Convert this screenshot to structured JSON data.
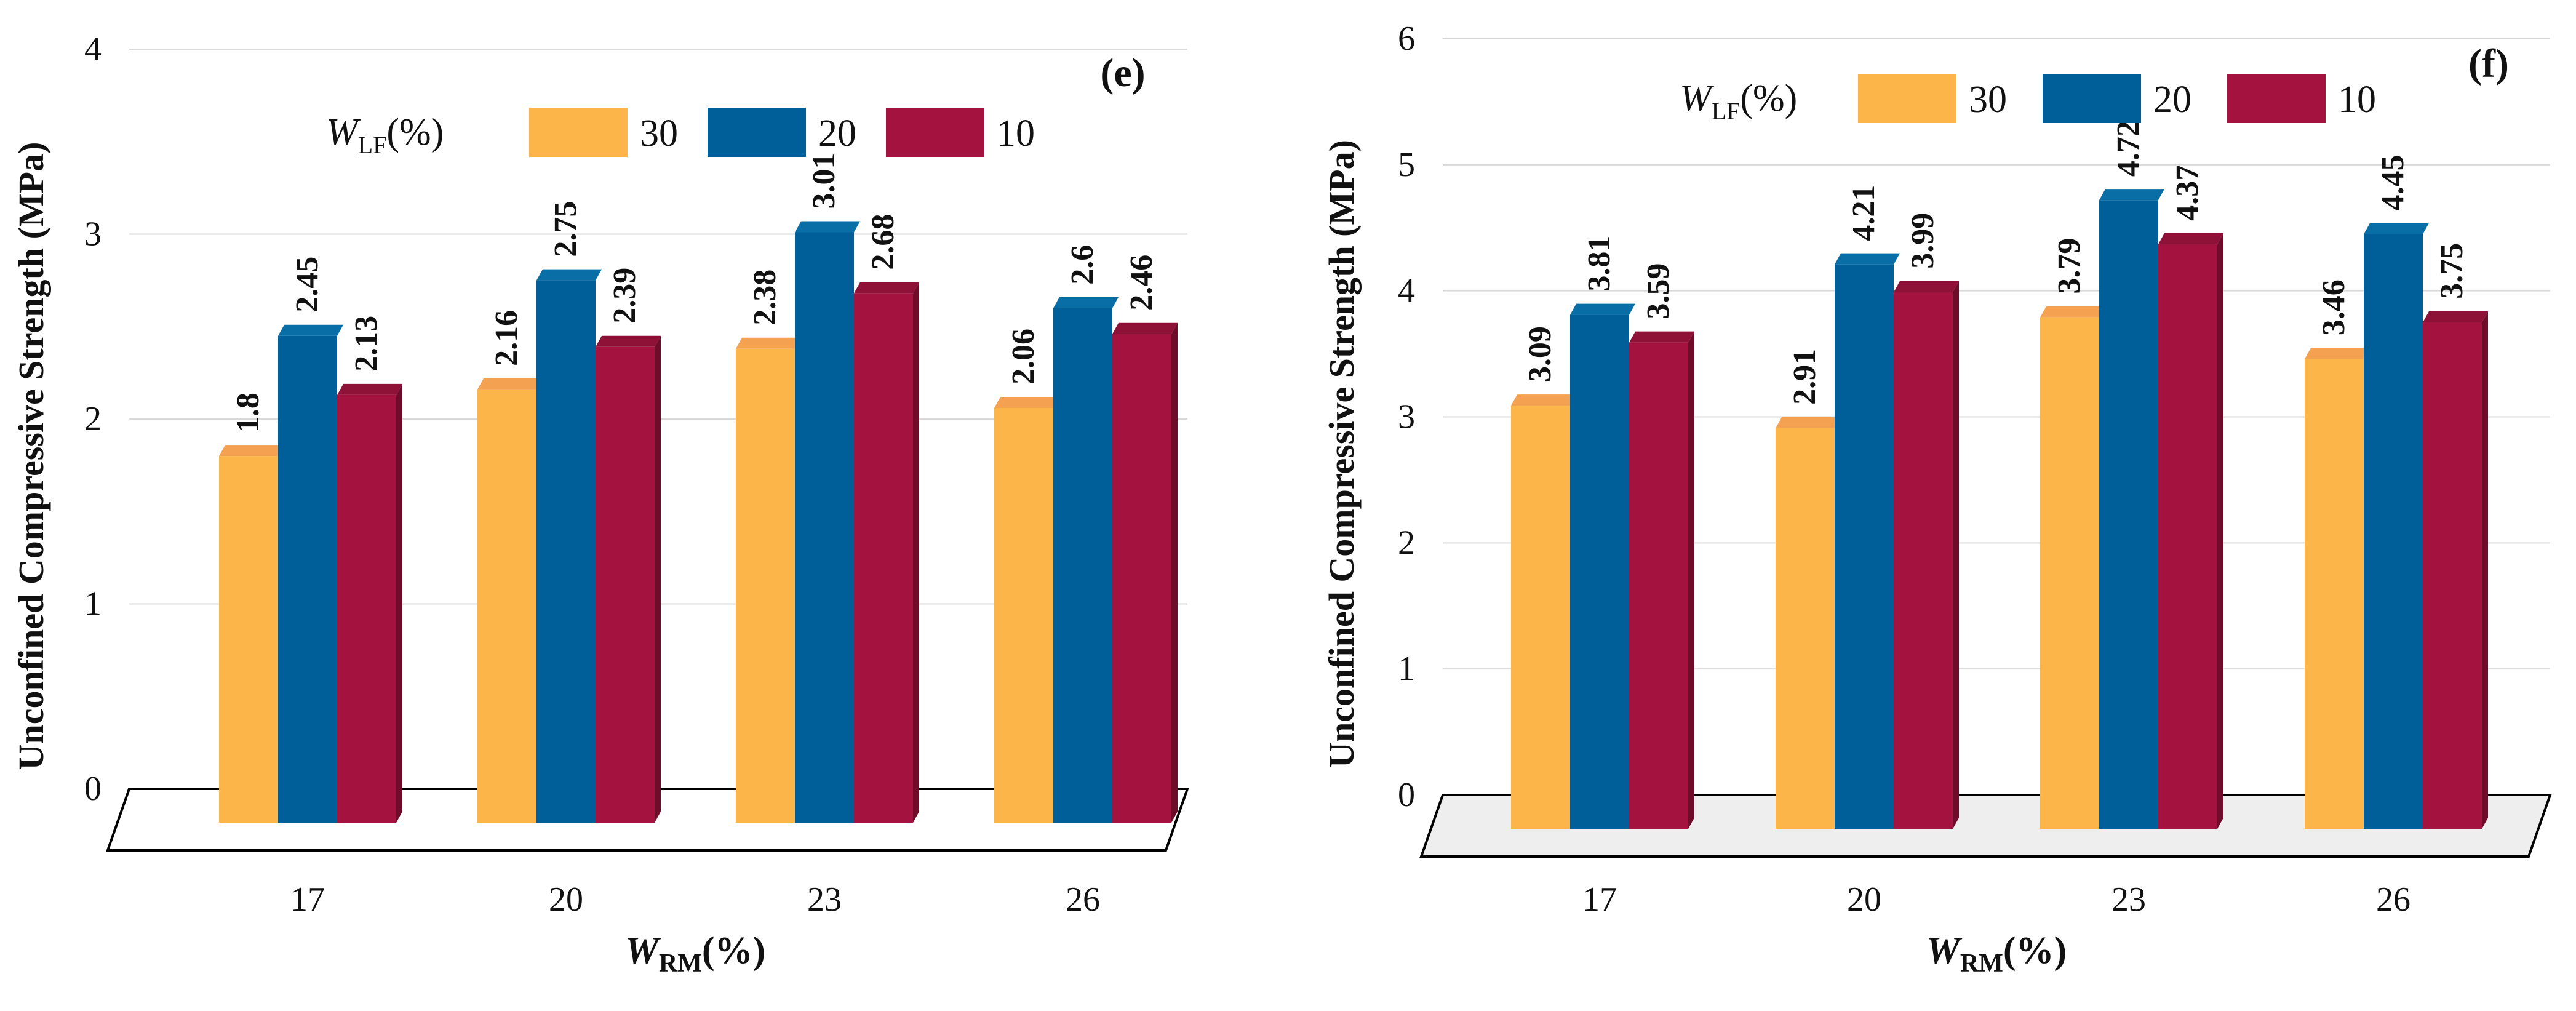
{
  "chart_data": [
    {
      "type": "bar",
      "panel_label": "(e)",
      "ylabel": "Unconfined Compressive Strength (MPa)",
      "xlabel": {
        "main": "W",
        "sub": "RM",
        "suffix": "(%)"
      },
      "legend_title": {
        "main": "W",
        "sub": "LF",
        "suffix": "(%)"
      },
      "categories": [
        "17",
        "20",
        "23",
        "26"
      ],
      "ylim": [
        0,
        4
      ],
      "yticks": [
        "0",
        "1",
        "2",
        "3",
        "4"
      ],
      "series": [
        {
          "name": "30",
          "values": [
            1.8,
            2.16,
            2.38,
            2.06
          ],
          "labels": [
            "1.8",
            "2.16",
            "2.38",
            "2.06"
          ]
        },
        {
          "name": "20",
          "values": [
            2.45,
            2.75,
            3.01,
            2.6
          ],
          "labels": [
            "2.45",
            "2.75",
            "3.01",
            "2.6"
          ]
        },
        {
          "name": "10",
          "values": [
            2.13,
            2.39,
            2.68,
            2.46
          ],
          "labels": [
            "2.13",
            "2.39",
            "2.68",
            "2.46"
          ]
        }
      ],
      "grid": true,
      "legend_position": "top"
    },
    {
      "type": "bar",
      "panel_label": "(f)",
      "ylabel": "Unconfined Compressive Strength (MPa)",
      "xlabel": {
        "main": "W",
        "sub": "RM",
        "suffix": "(%)"
      },
      "legend_title": {
        "main": "W",
        "sub": "LF",
        "suffix": "(%)"
      },
      "categories": [
        "17",
        "20",
        "23",
        "26"
      ],
      "ylim": [
        0,
        6
      ],
      "yticks": [
        "0",
        "1",
        "2",
        "3",
        "4",
        "5",
        "6"
      ],
      "series": [
        {
          "name": "30",
          "values": [
            3.09,
            2.91,
            3.79,
            3.46
          ],
          "labels": [
            "3.09",
            "2.91",
            "3.79",
            "3.46"
          ]
        },
        {
          "name": "20",
          "values": [
            3.81,
            4.21,
            4.72,
            4.45
          ],
          "labels": [
            "3.81",
            "4.21",
            "4.72",
            "4.45"
          ]
        },
        {
          "name": "10",
          "values": [
            3.59,
            3.99,
            4.37,
            3.75
          ],
          "labels": [
            "3.59",
            "3.99",
            "4.37",
            "3.75"
          ]
        }
      ],
      "grid": true,
      "legend_position": "top"
    }
  ],
  "colors": {
    "30": {
      "front": "#FBB548",
      "side": "#D08A22",
      "top": "#F4A252"
    },
    "20": {
      "front": "#005F99",
      "side": "#003F6A",
      "top": "#0A6EA6"
    },
    "10": {
      "front": "#A4123F",
      "side": "#6E0C2A",
      "top": "#8E1138"
    },
    "floor_f": "#EEEEEE",
    "grid": "#D9D9D9"
  }
}
